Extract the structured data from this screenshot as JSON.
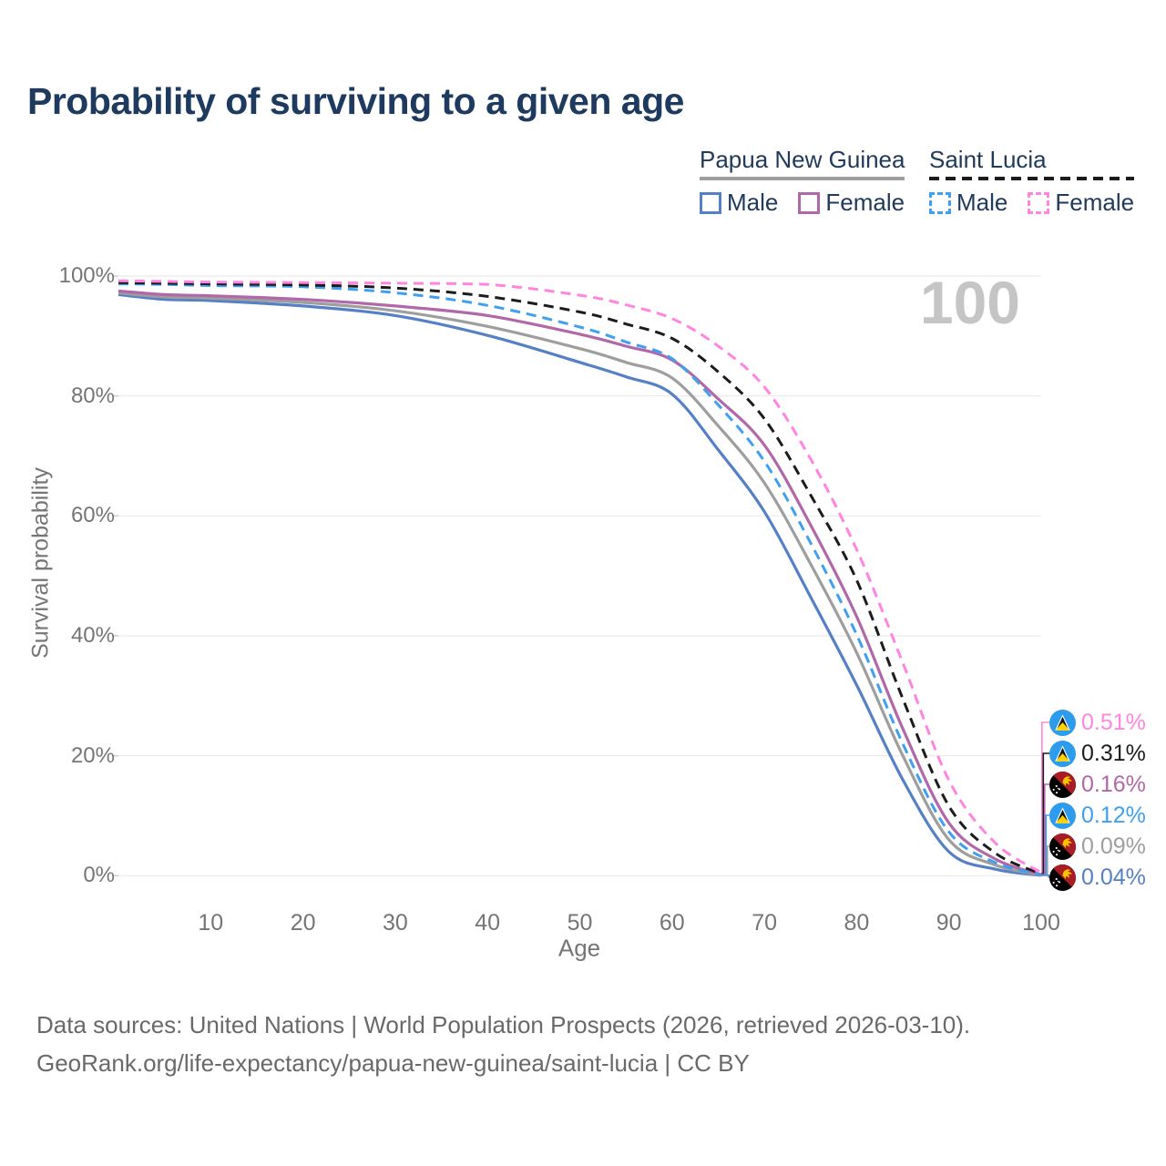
{
  "title": "Probability of surviving to a given age",
  "watermark_age": "100",
  "legend": {
    "groups": [
      {
        "country": "Papua New Guinea",
        "line_style": "solid",
        "underline_color": "#9e9e9e",
        "items": [
          {
            "label": "Male",
            "color": "#5580c6",
            "dashed": false
          },
          {
            "label": "Female",
            "color": "#b168a8",
            "dashed": false
          }
        ]
      },
      {
        "country": "Saint Lucia",
        "line_style": "dashed",
        "underline_color": "#1c1c1c",
        "items": [
          {
            "label": "Male",
            "color": "#3f9ff0",
            "dashed": true
          },
          {
            "label": "Female",
            "color": "#ff85e1",
            "dashed": true
          }
        ]
      }
    ]
  },
  "chart_data": {
    "type": "line",
    "title": "Probability of surviving to a given age",
    "xlabel": "Age",
    "ylabel": "Survival probability",
    "xlim": [
      0,
      100
    ],
    "ylim": [
      0,
      100
    ],
    "grid": "horizontal-only",
    "legend_position": "top-right",
    "xticks": [
      10,
      20,
      30,
      40,
      50,
      60,
      70,
      80,
      90,
      100
    ],
    "yticks": [
      {
        "v": 0,
        "label": "0%"
      },
      {
        "v": 20,
        "label": "20%"
      },
      {
        "v": 40,
        "label": "40%"
      },
      {
        "v": 60,
        "label": "60%"
      },
      {
        "v": 80,
        "label": "80%"
      },
      {
        "v": 100,
        "label": "100%"
      }
    ],
    "x": [
      0,
      5,
      10,
      20,
      30,
      40,
      50,
      55,
      60,
      65,
      70,
      75,
      80,
      85,
      90,
      95,
      100
    ],
    "series": [
      {
        "key": "png-male",
        "country": "Papua New Guinea",
        "sex": "Male",
        "color": "#5580c6",
        "dashed": false,
        "values": [
          96.9,
          96.1,
          95.9,
          95.0,
          93.4,
          90.1,
          85.6,
          83.2,
          80.3,
          71.0,
          60.7,
          46.5,
          31.8,
          16.0,
          4.0,
          1.1,
          0.04
        ]
      },
      {
        "key": "png-both",
        "country": "Papua New Guinea",
        "sex": "Both sexes",
        "color": "#9e9e9e",
        "dashed": false,
        "values": [
          97.2,
          96.5,
          96.3,
          95.6,
          94.2,
          91.6,
          87.9,
          85.6,
          83.0,
          75.0,
          65.5,
          52.0,
          37.2,
          20.0,
          6.0,
          1.8,
          0.09
        ]
      },
      {
        "key": "png-female",
        "country": "Papua New Guinea",
        "sex": "Female",
        "color": "#b168a8",
        "dashed": false,
        "values": [
          97.5,
          96.9,
          96.7,
          96.1,
          95.0,
          93.4,
          90.3,
          88.3,
          86.0,
          79.5,
          71.8,
          58.5,
          43.2,
          24.5,
          8.8,
          2.8,
          0.16
        ]
      },
      {
        "key": "sl-male",
        "country": "Saint Lucia",
        "sex": "Male",
        "color": "#3f9ff0",
        "dashed": true,
        "values": [
          98.7,
          98.6,
          98.4,
          98.2,
          97.2,
          95.1,
          91.5,
          89.0,
          86.2,
          78.5,
          69.1,
          55.5,
          40.2,
          22.0,
          7.3,
          2.2,
          0.12
        ]
      },
      {
        "key": "sl-both",
        "country": "Saint Lucia",
        "sex": "Both sexes",
        "color": "#1c1c1c",
        "dashed": true,
        "values": [
          98.9,
          98.8,
          98.7,
          98.5,
          98.0,
          96.6,
          94.0,
          92.0,
          89.6,
          84.0,
          76.2,
          63.5,
          49.3,
          29.5,
          11.6,
          3.8,
          0.31
        ]
      },
      {
        "key": "sl-female",
        "country": "Saint Lucia",
        "sex": "Female",
        "color": "#ff85e1",
        "dashed": true,
        "values": [
          99.2,
          99.1,
          99.0,
          98.9,
          98.8,
          98.6,
          96.8,
          95.2,
          92.9,
          88.3,
          81.5,
          69.5,
          54.4,
          35.5,
          15.9,
          5.5,
          0.51
        ]
      }
    ],
    "end_labels": [
      {
        "series": "sl-female",
        "value": "0.51%",
        "flag": "saint-lucia",
        "color": "#ff85e1"
      },
      {
        "series": "sl-both",
        "value": "0.31%",
        "flag": "saint-lucia",
        "color": "#1c1c1c"
      },
      {
        "series": "png-female",
        "value": "0.16%",
        "flag": "papua-new-guinea",
        "color": "#b168a8"
      },
      {
        "series": "sl-male",
        "value": "0.12%",
        "flag": "saint-lucia",
        "color": "#3f9ff0"
      },
      {
        "series": "png-both",
        "value": "0.09%",
        "flag": "papua-new-guinea",
        "color": "#9e9e9e"
      },
      {
        "series": "png-male",
        "value": "0.04%",
        "flag": "papua-new-guinea",
        "color": "#5580c6"
      }
    ]
  },
  "footer": {
    "line1": "Data sources: United Nations | World Population Prospects (2026, retrieved 2026-03-10).",
    "line2": "GeoRank.org/life-expectancy/papua-new-guinea/saint-lucia | CC BY"
  },
  "colors": {
    "title_text": "#1e3a5e",
    "legend_text": "#203a5c",
    "axis_text": "#757575",
    "gridline": "#ebebeb",
    "tick_mark": "#cccccc",
    "watermark": "#c5c5c5",
    "footer_text": "#696969"
  }
}
